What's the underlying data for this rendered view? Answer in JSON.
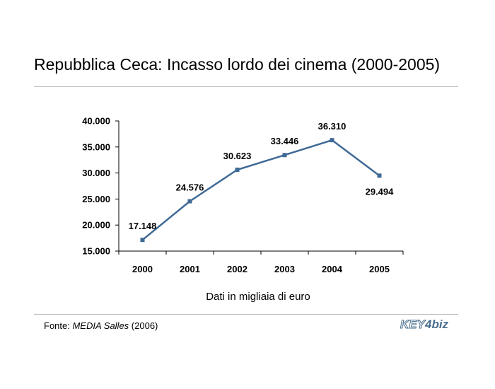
{
  "title": "Repubblica Ceca: Incasso lordo dei cinema (2000-2005)",
  "subtitle": "Dati in migliaia di euro",
  "source": {
    "prefix": "Fonte: ",
    "name": "MEDIA Salles",
    "suffix": " (2006)"
  },
  "logo": {
    "key": "KEY",
    "num": "4",
    "biz": "biz"
  },
  "colors": {
    "line": "#3f6a96",
    "marker": "#3f6a96",
    "rule": "#c0c0c0",
    "logo": "#4a6f8f"
  },
  "chart_data": {
    "type": "line",
    "categories": [
      "2000",
      "2001",
      "2002",
      "2003",
      "2004",
      "2005"
    ],
    "values": [
      17148,
      24576,
      30623,
      33446,
      36310,
      29494
    ],
    "data_labels": [
      "17.148",
      "24.576",
      "30.623",
      "33.446",
      "36.310",
      "29.494"
    ],
    "ylim": [
      15000,
      40000
    ],
    "yticks": [
      "15.000",
      "20.000",
      "25.000",
      "30.000",
      "35.000",
      "40.000"
    ],
    "ytick_values": [
      15000,
      20000,
      25000,
      30000,
      35000,
      40000
    ],
    "xlabel": "Dati in migliaia di euro",
    "ylabel": "",
    "grid": false,
    "legend": "none"
  }
}
